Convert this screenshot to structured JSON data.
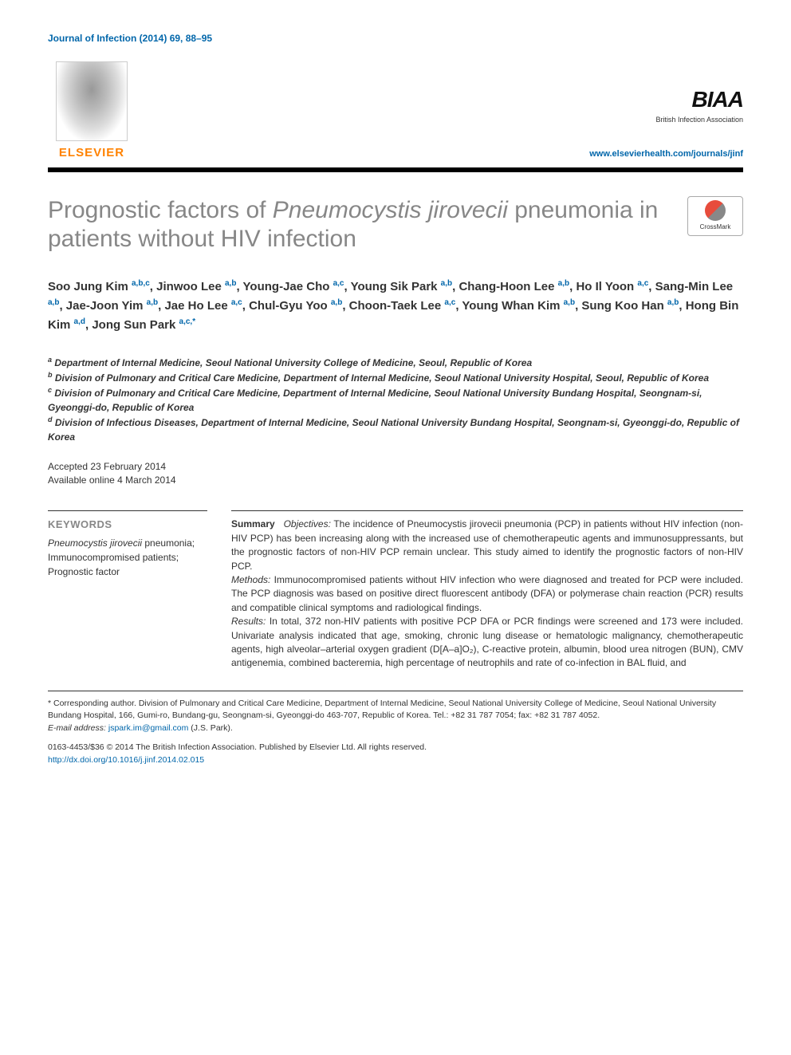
{
  "journal_ref": "Journal of Infection (2014) 69, 88–95",
  "publisher": {
    "name": "ELSEVIER",
    "url": "www.elsevierhealth.com/journals/jinf"
  },
  "association": {
    "logo_text": "BIAA",
    "subtitle": "British Infection Association"
  },
  "crossmark_label": "CrossMark",
  "title_pre": "Prognostic factors of ",
  "title_italic": "Pneumocystis jirovecii",
  "title_post": " pneumonia in patients without HIV infection",
  "authors": [
    {
      "name": "Soo Jung Kim",
      "aff": "a,b,c"
    },
    {
      "name": "Jinwoo Lee",
      "aff": "a,b"
    },
    {
      "name": "Young-Jae Cho",
      "aff": "a,c"
    },
    {
      "name": "Young Sik Park",
      "aff": "a,b"
    },
    {
      "name": "Chang-Hoon Lee",
      "aff": "a,b"
    },
    {
      "name": "Ho Il Yoon",
      "aff": "a,c"
    },
    {
      "name": "Sang-Min Lee",
      "aff": "a,b"
    },
    {
      "name": "Jae-Joon Yim",
      "aff": "a,b"
    },
    {
      "name": "Jae Ho Lee",
      "aff": "a,c"
    },
    {
      "name": "Chul-Gyu Yoo",
      "aff": "a,b"
    },
    {
      "name": "Choon-Taek Lee",
      "aff": "a,c"
    },
    {
      "name": "Young Whan Kim",
      "aff": "a,b"
    },
    {
      "name": "Sung Koo Han",
      "aff": "a,b"
    },
    {
      "name": "Hong Bin Kim",
      "aff": "a,d"
    },
    {
      "name": "Jong Sun Park",
      "aff": "a,c,*"
    }
  ],
  "affiliations": [
    {
      "key": "a",
      "text": "Department of Internal Medicine, Seoul National University College of Medicine, Seoul, Republic of Korea"
    },
    {
      "key": "b",
      "text": "Division of Pulmonary and Critical Care Medicine, Department of Internal Medicine, Seoul National University Hospital, Seoul, Republic of Korea"
    },
    {
      "key": "c",
      "text": "Division of Pulmonary and Critical Care Medicine, Department of Internal Medicine, Seoul National University Bundang Hospital, Seongnam-si, Gyeonggi-do, Republic of Korea"
    },
    {
      "key": "d",
      "text": "Division of Infectious Diseases, Department of Internal Medicine, Seoul National University Bundang Hospital, Seongnam-si, Gyeonggi-do, Republic of Korea"
    }
  ],
  "dates": {
    "accepted": "Accepted 23 February 2014",
    "online": "Available online 4 March 2014"
  },
  "keywords": {
    "heading": "KEYWORDS",
    "items_italic": "Pneumocystis jirovecii",
    "items_rest": " pneumonia;\nImmunocompromised patients;\nPrognostic factor"
  },
  "summary": {
    "label": "Summary",
    "objectives_label": "Objectives:",
    "objectives_text": " The incidence of Pneumocystis jirovecii pneumonia (PCP) in patients without HIV infection (non-HIV PCP) has been increasing along with the increased use of chemotherapeutic agents and immunosuppressants, but the prognostic factors of non-HIV PCP remain unclear. This study aimed to identify the prognostic factors of non-HIV PCP.",
    "methods_label": "Methods:",
    "methods_text": " Immunocompromised patients without HIV infection who were diagnosed and treated for PCP were included. The PCP diagnosis was based on positive direct fluorescent antibody (DFA) or polymerase chain reaction (PCR) results and compatible clinical symptoms and radiological findings.",
    "results_label": "Results:",
    "results_text": " In total, 372 non-HIV patients with positive PCP DFA or PCR findings were screened and 173 were included. Univariate analysis indicated that age, smoking, chronic lung disease or hematologic malignancy, chemotherapeutic agents, high alveolar–arterial oxygen gradient (D[A–a]O₂), C-reactive protein, albumin, blood urea nitrogen (BUN), CMV antigenemia, combined bacteremia, high percentage of neutrophils and rate of co-infection in BAL fluid, and"
  },
  "corresponding": {
    "text": "* Corresponding author. Division of Pulmonary and Critical Care Medicine, Department of Internal Medicine, Seoul National University College of Medicine, Seoul National University Bundang Hospital, 166, Gumi-ro, Bundang-gu, Seongnam-si, Gyeonggi-do 463-707, Republic of Korea. Tel.: +82 31 787 7054; fax: +82 31 787 4052.",
    "email_label": "E-mail address:",
    "email": "jspark.im@gmail.com",
    "email_suffix": " (J.S. Park)."
  },
  "copyright": {
    "line1": "0163-4453/$36 © 2014 The British Infection Association. Published by Elsevier Ltd. All rights reserved.",
    "doi": "http://dx.doi.org/10.1016/j.jinf.2014.02.015"
  },
  "colors": {
    "link": "#0066aa",
    "title_gray": "#878787",
    "elsevier_orange": "#ff8200",
    "text": "#333333",
    "rule": "#000000"
  },
  "typography": {
    "body_pt": 13,
    "title_pt": 30,
    "authors_pt": 15,
    "affil_pt": 12,
    "footnote_pt": 10.5
  }
}
